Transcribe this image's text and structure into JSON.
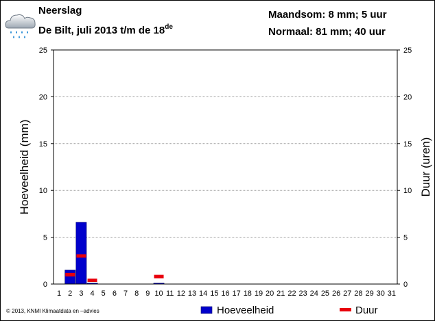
{
  "header": {
    "title": "Neerslag",
    "subtitle": "De Bilt, juli 2013 t/m de 18",
    "subtitle_sup": "de",
    "stat_month": "Maandsom: 8 mm; 5 uur",
    "stat_normal": "Normaal: 81 mm; 40 uur",
    "icon": "rain-cloud-icon"
  },
  "footer": {
    "copyright": "© 2013, KNMI Klimaatdata en –advies"
  },
  "colors": {
    "bar": "#0000cc",
    "duration": "#e8000b",
    "grid": "#999999"
  },
  "chart_data": {
    "type": "bar",
    "x": [
      1,
      2,
      3,
      4,
      5,
      6,
      7,
      8,
      9,
      10,
      11,
      12,
      13,
      14,
      15,
      16,
      17,
      18,
      19,
      20,
      21,
      22,
      23,
      24,
      25,
      26,
      27,
      28,
      29,
      30,
      31
    ],
    "ylabel_left": "Hoeveelheid (mm)",
    "ylabel_right": "Duur (uren)",
    "ylim": [
      0,
      25
    ],
    "y2lim": [
      0,
      25
    ],
    "yticks": [
      0,
      5,
      10,
      15,
      20,
      25
    ],
    "grid": true,
    "legend_position": "bottom",
    "series": [
      {
        "name": "Hoeveelheid",
        "kind": "bar",
        "values": [
          0,
          1.5,
          6.6,
          0.1,
          0,
          0,
          0,
          0,
          0,
          0.1,
          0,
          0,
          0,
          0,
          0,
          0,
          0,
          0,
          0,
          0,
          0,
          0,
          0,
          0,
          0,
          0,
          0,
          0,
          0,
          0,
          0
        ]
      },
      {
        "name": "Duur",
        "kind": "marker",
        "values": [
          0,
          1.0,
          3.0,
          0.4,
          0,
          0,
          0,
          0,
          0,
          0.8,
          0,
          0,
          0,
          0,
          0,
          0,
          0,
          0,
          0,
          0,
          0,
          0,
          0,
          0,
          0,
          0,
          0,
          0,
          0,
          0,
          0
        ]
      }
    ]
  }
}
